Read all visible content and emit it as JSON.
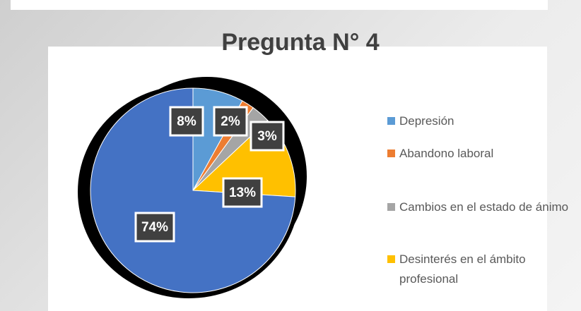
{
  "chart_data": {
    "type": "pie",
    "title": "Pregunta N° 4",
    "categories": [
      "Depresión",
      "Abandono laboral",
      "Cambios en el estado de ánimo",
      "Desinterés en el ámbito profesional",
      null
    ],
    "values": [
      8,
      2,
      3,
      13,
      74
    ],
    "value_labels": [
      "8%",
      "2%",
      "3%",
      "13%",
      "74%"
    ],
    "colors": [
      "#5b9bd5",
      "#ed7d31",
      "#a5a5a5",
      "#ffc000",
      "#4472c4"
    ],
    "legend": "right"
  }
}
